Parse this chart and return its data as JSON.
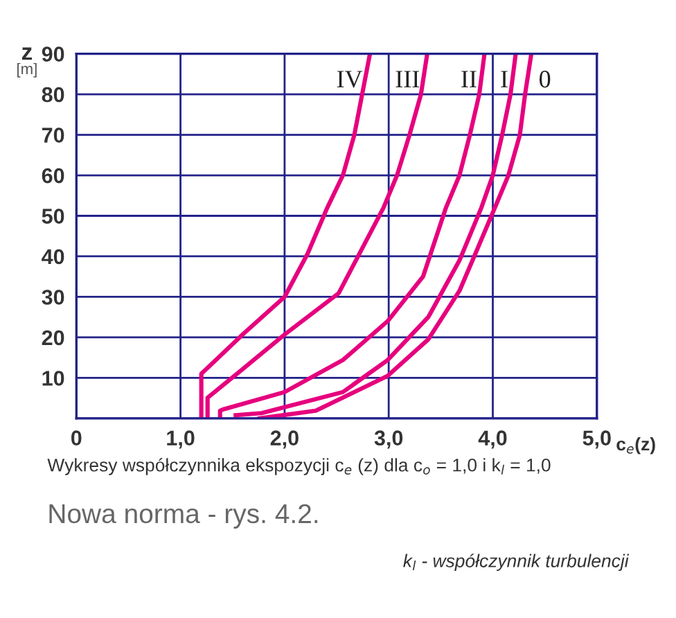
{
  "chart_data": {
    "type": "line",
    "xlabel": "c$_{e}$(z)",
    "ylabel": "z\n[m]",
    "xlim": [
      0,
      5
    ],
    "ylim": [
      0,
      90
    ],
    "xticks": [
      0,
      {
        "value": 1,
        "label": "1,0"
      },
      {
        "value": 2,
        "label": "2,0"
      },
      {
        "value": 3,
        "label": "3,0"
      },
      {
        "value": 4,
        "label": "4,0"
      },
      {
        "value": 5,
        "label": "5,0"
      }
    ],
    "yticks": [
      {
        "value": 0,
        "label": null
      },
      10,
      20,
      30,
      40,
      50,
      60,
      70,
      80,
      90
    ],
    "grid": true,
    "marker": "none",
    "line_style": "solid",
    "series": [
      {
        "name": "IV",
        "color": "#e6007e",
        "x": [
          1.2,
          1.2,
          1.61,
          2.0,
          2.22,
          2.41,
          2.56,
          2.67,
          2.82
        ],
        "values": [
          0,
          11,
          21,
          30,
          40.6,
          52,
          60,
          70,
          90
        ]
      },
      {
        "name": "III",
        "color": "#e6007e",
        "x": [
          1.26,
          1.26,
          1.57,
          2.0,
          2.52,
          2.95,
          3.08,
          3.2,
          3.31,
          3.37
        ],
        "values": [
          0,
          5.1,
          11.6,
          20.7,
          30.9,
          52,
          60,
          70,
          80,
          90
        ]
      },
      {
        "name": "II",
        "color": "#e6007e",
        "x": [
          1.38,
          1.38,
          1.42,
          2.0,
          2.56,
          2.99,
          3.33,
          3.55,
          3.68,
          3.78,
          3.87,
          3.92
        ],
        "values": [
          0,
          1.9,
          2.3,
          6.5,
          14.4,
          24,
          35,
          52,
          60,
          70,
          80,
          90
        ]
      },
      {
        "name": "I",
        "color": "#e6007e",
        "x": [
          1.53,
          1.78,
          2.56,
          2.99,
          3.38,
          3.68,
          3.89,
          4.0,
          4.09,
          4.17,
          4.22
        ],
        "values": [
          0.8,
          1.3,
          6.5,
          14.4,
          25,
          39,
          52,
          60,
          70,
          80,
          90
        ]
      },
      {
        "name": "0",
        "color": "#e6007e",
        "x": [
          1.76,
          2.3,
          2.99,
          3.38,
          3.68,
          3.85,
          4.02,
          4.15,
          4.26,
          4.31,
          4.37
        ],
        "values": [
          0,
          1.9,
          10.5,
          19.5,
          31.5,
          41.7,
          52,
          60,
          70,
          80,
          90
        ]
      }
    ],
    "annotations": [
      "Wykresy współczynnika ekspozycji c$_{e}$ (z) dla c$_{o}$ = 1,0 i k$_{l}$ = 1,0",
      "Nowa norma - rys. 4.2.",
      "k$_{l}$ - współczynnik turbulencji"
    ]
  }
}
